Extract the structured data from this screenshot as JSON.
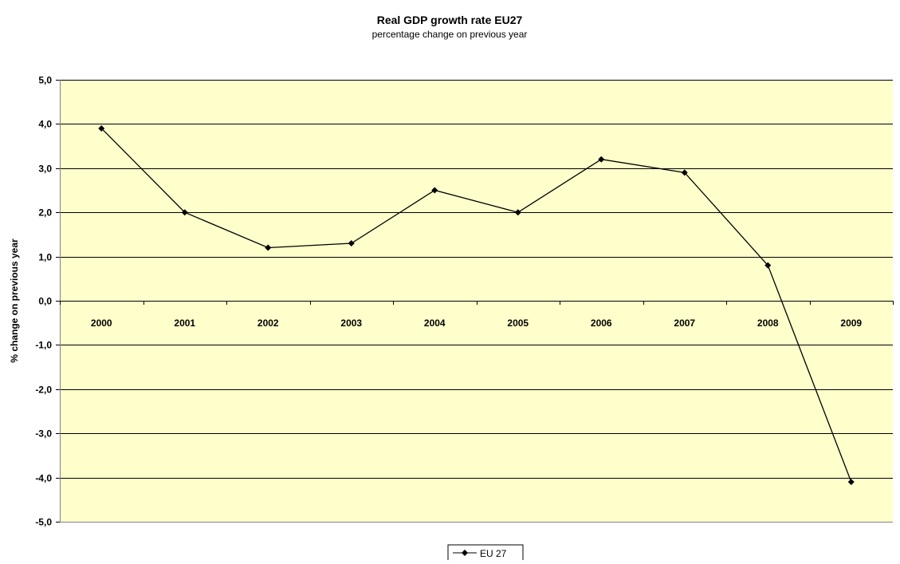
{
  "chart_data": {
    "type": "line",
    "title": "Real GDP growth rate EU27",
    "subtitle": "percentage change on previous year",
    "ylabel": "% change on previous year",
    "xlabel": "",
    "categories": [
      "2000",
      "2001",
      "2002",
      "2003",
      "2004",
      "2005",
      "2006",
      "2007",
      "2008",
      "2009"
    ],
    "series": [
      {
        "name": "EU 27",
        "values": [
          3.9,
          2.0,
          1.2,
          1.3,
          2.5,
          2.0,
          3.2,
          2.9,
          0.8,
          -4.1
        ],
        "color": "#000000",
        "marker": "diamond"
      }
    ],
    "ylim": [
      -5,
      5
    ],
    "yticks": [
      5,
      4,
      3,
      2,
      1,
      0,
      -1,
      -2,
      -3,
      -4,
      -5
    ],
    "ytick_labels": [
      "5,0",
      "4,0",
      "3,0",
      "2,0",
      "1,0",
      "0,0",
      "-1,0",
      "-2,0",
      "-3,0",
      "-4,0",
      "-5,0"
    ],
    "grid": true,
    "plot_background": "#FFFFCC",
    "legend_position": "bottom"
  }
}
